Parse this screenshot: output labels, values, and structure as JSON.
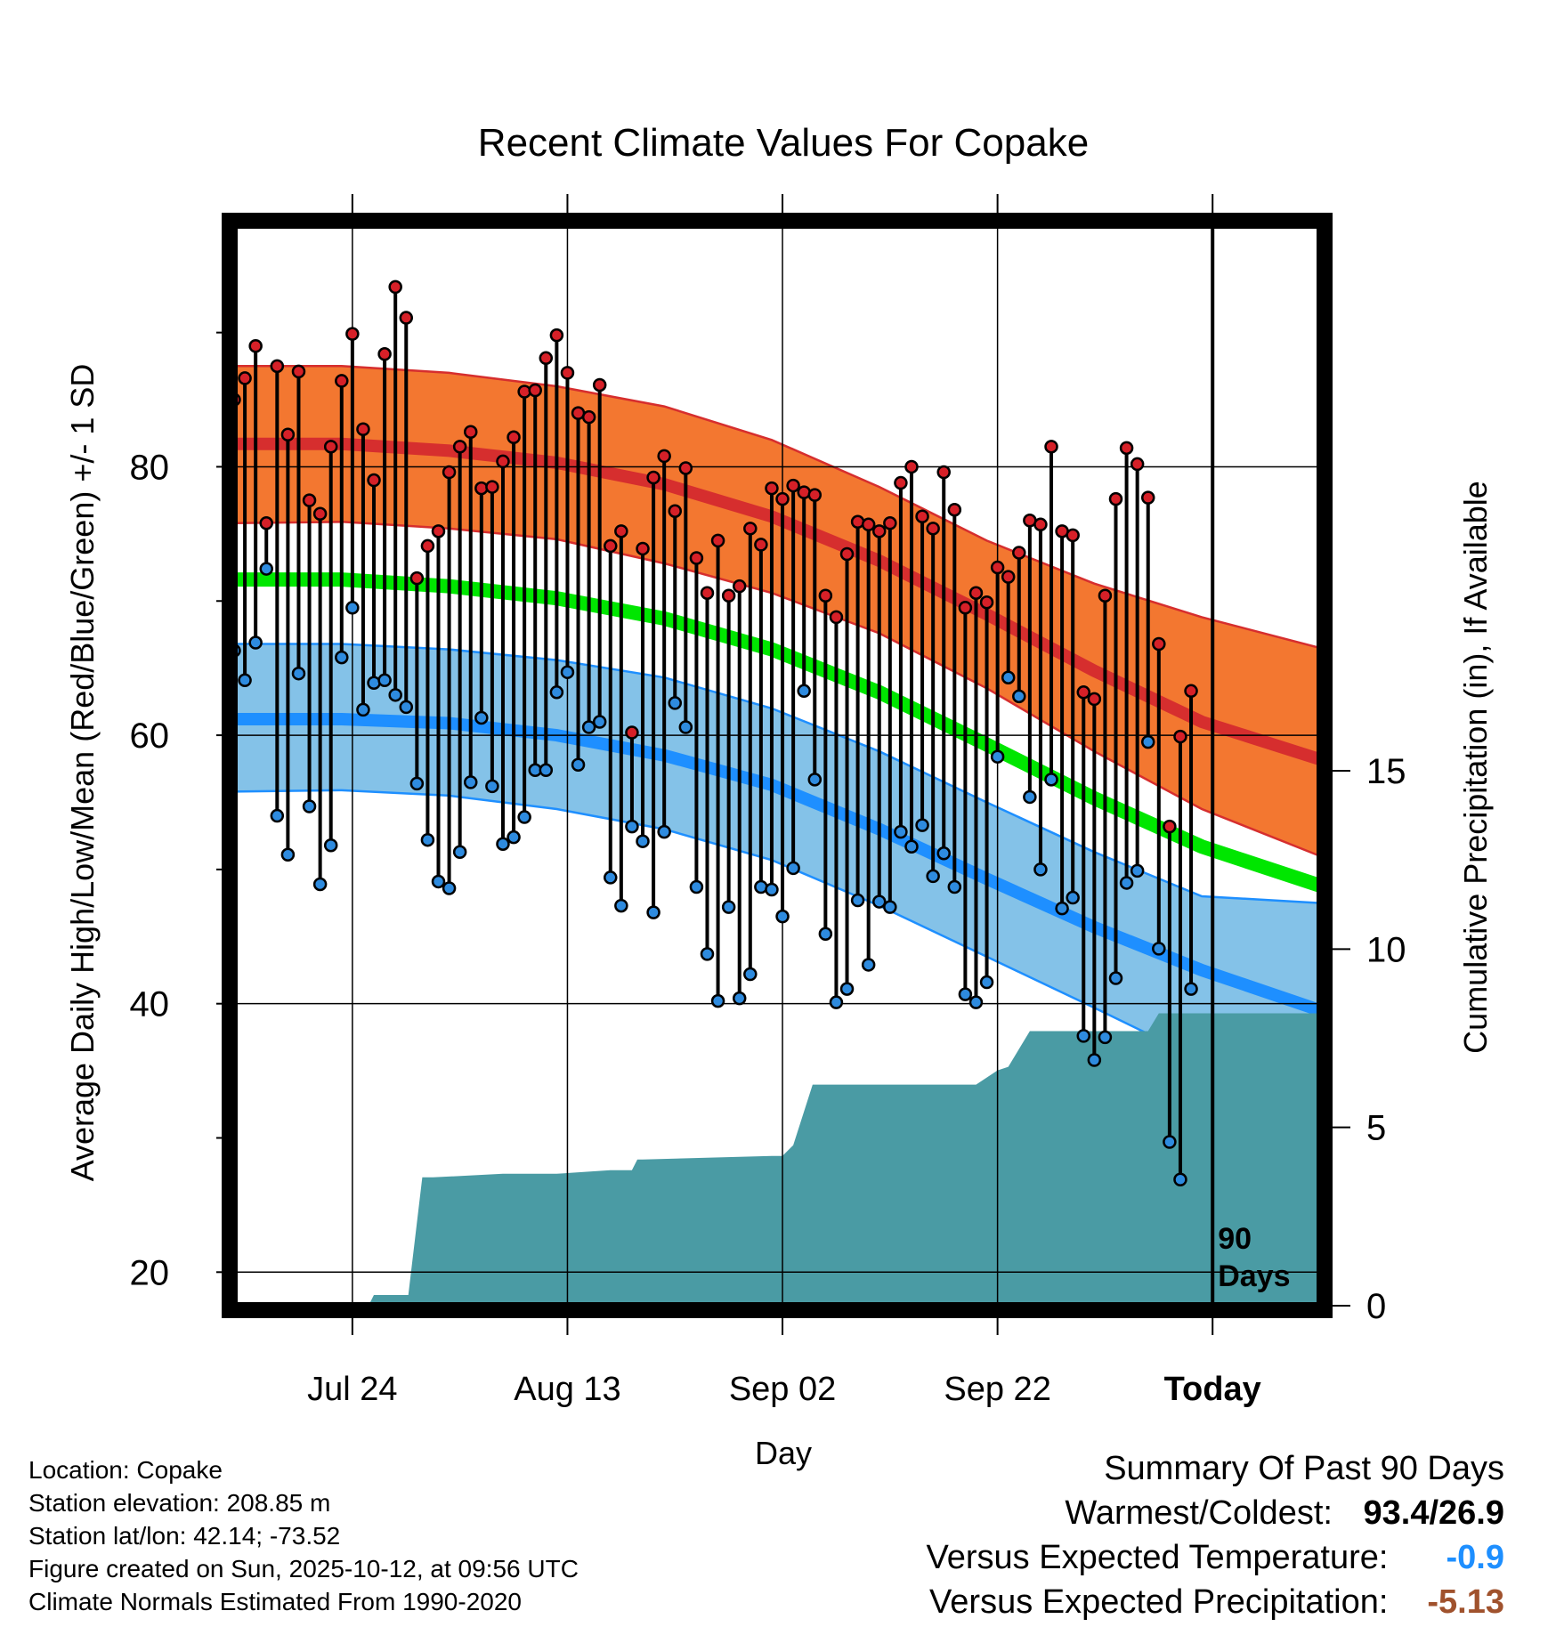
{
  "chart_data": {
    "type": "line",
    "title": "Recent Climate Values For Copake",
    "xlabel": "Day",
    "ylabel": "Average Daily High/Low/Mean (Red/Blue/Green) +/- 1 SD",
    "y2label": "Cumulative Precipitation (in), If Available",
    "x_tick_labels": [
      "Jul 24",
      "Aug 13",
      "Sep 02",
      "Sep 22",
      "Today"
    ],
    "x_tick_days": [
      11,
      31,
      51,
      71,
      91
    ],
    "xlim": [
      0,
      101
    ],
    "ylim": [
      17.5,
      98
    ],
    "y_ticks": [
      20,
      40,
      60,
      80
    ],
    "y2lim": [
      0,
      30.3
    ],
    "y2_ticks": [
      0,
      5,
      10,
      15
    ],
    "today_marker_label": "90 Days",
    "grid": true,
    "normals": {
      "day": [
        0,
        10,
        20,
        30,
        40,
        50,
        60,
        70,
        80,
        90,
        101
      ],
      "high_mean": [
        81.7,
        81.7,
        81.2,
        80.3,
        78.7,
        76.3,
        73.0,
        69.0,
        64.8,
        61.0,
        58.2
      ],
      "high_upper": [
        87.5,
        87.5,
        87.0,
        86.0,
        84.5,
        82.0,
        78.5,
        74.5,
        71.3,
        68.8,
        66.5
      ],
      "high_lower": [
        75.8,
        75.9,
        75.4,
        74.6,
        72.8,
        70.6,
        67.6,
        63.5,
        58.8,
        54.5,
        51.0
      ],
      "mean": [
        71.6,
        71.6,
        71.1,
        70.2,
        68.7,
        66.4,
        63.2,
        59.3,
        55.3,
        51.7,
        48.8
      ],
      "low_mean": [
        61.2,
        61.2,
        60.9,
        60.0,
        58.5,
        56.3,
        53.0,
        49.3,
        45.7,
        42.5,
        39.5
      ],
      "low_upper": [
        66.8,
        66.8,
        66.4,
        65.6,
        64.3,
        62.0,
        58.8,
        55.0,
        51.3,
        48.0,
        47.5
      ],
      "low_lower": [
        55.8,
        55.9,
        55.5,
        54.5,
        53.0,
        50.7,
        47.3,
        43.5,
        39.7,
        35.8,
        31.8
      ]
    },
    "series": [
      {
        "name": "Daily High",
        "start_day": 0,
        "values": [
          85.0,
          86.6,
          89.0,
          75.8,
          87.5,
          82.4,
          87.1,
          77.5,
          76.5,
          81.5,
          86.4,
          89.9,
          82.8,
          79.0,
          88.4,
          93.4,
          91.1,
          71.7,
          74.1,
          75.2,
          79.6,
          81.5,
          82.6,
          78.4,
          78.5,
          80.4,
          82.2,
          85.6,
          85.7,
          88.1,
          89.8,
          87.0,
          84.0,
          83.7,
          86.1,
          74.1,
          75.2,
          60.2,
          73.9,
          79.2,
          80.8,
          76.7,
          79.9,
          73.2,
          70.6,
          74.5,
          70.4,
          71.1,
          75.4,
          74.2,
          78.4,
          77.6,
          78.6,
          78.1,
          77.9,
          70.4,
          68.8,
          73.5,
          75.9,
          75.7,
          75.2,
          75.8,
          78.8,
          80.0,
          76.3,
          75.4,
          79.6,
          76.8,
          69.5,
          70.6,
          69.9,
          72.5,
          71.8,
          73.6,
          76.0,
          75.7,
          81.5,
          75.2,
          74.9,
          63.2,
          62.7,
          70.4,
          77.6,
          81.4,
          80.2,
          77.7,
          66.8,
          53.2,
          59.9,
          63.3
        ]
      },
      {
        "name": "Daily Low",
        "start_day": 0,
        "values": [
          66.3,
          64.1,
          66.9,
          72.4,
          54.0,
          51.1,
          64.6,
          54.7,
          48.9,
          51.8,
          65.8,
          69.5,
          61.9,
          63.9,
          64.1,
          63.0,
          62.1,
          56.4,
          52.2,
          49.1,
          48.6,
          51.3,
          56.5,
          61.3,
          56.2,
          51.9,
          52.4,
          53.9,
          57.4,
          57.4,
          63.2,
          64.7,
          57.8,
          60.6,
          61.0,
          49.4,
          47.3,
          53.2,
          52.1,
          46.8,
          52.8,
          62.4,
          60.6,
          48.7,
          43.7,
          40.2,
          47.2,
          40.4,
          42.2,
          48.7,
          48.5,
          46.5,
          50.1,
          63.3,
          56.7,
          45.2,
          40.1,
          41.1,
          47.7,
          42.9,
          47.6,
          47.2,
          52.8,
          51.7,
          53.3,
          49.5,
          51.2,
          48.7,
          40.7,
          40.1,
          41.6,
          58.4,
          64.3,
          62.9,
          55.4,
          50.0,
          56.7,
          47.1,
          47.9,
          37.6,
          35.8,
          37.5,
          41.9,
          49.0,
          49.9,
          59.5,
          44.1,
          29.7,
          26.9,
          41.1
        ]
      }
    ],
    "precipitation": {
      "day": [
        0,
        12.5,
        13,
        16,
        16.2,
        17.5,
        18.5,
        25,
        30,
        35,
        37,
        37.5,
        38,
        50,
        51,
        52,
        53.8,
        54.3,
        57.5,
        69,
        70.5,
        71,
        72,
        74,
        74.5,
        80,
        85,
        86,
        87,
        101
      ],
      "cumulative": [
        0,
        0,
        0.3,
        0.3,
        0.3,
        3.6,
        3.6,
        3.7,
        3.7,
        3.8,
        3.8,
        4.1,
        4.1,
        4.2,
        4.2,
        4.5,
        6.2,
        6.2,
        6.2,
        6.2,
        6.5,
        6.6,
        6.7,
        7.7,
        7.7,
        7.7,
        7.7,
        8.2,
        8.2,
        8.2
      ]
    }
  },
  "info": {
    "location": "Location: Copake",
    "elevation": "Station elevation: 208.85 m",
    "latlon": "Station lat/lon: 42.14; -73.52",
    "created": "Figure created on Sun, 2025-10-12, at 09:56 UTC",
    "normals": "Climate Normals Estimated From 1990-2020"
  },
  "summary": {
    "heading": "Summary Of Past 90 Days",
    "extremes_label": "Warmest/Coldest:",
    "extremes_value": "93.4/26.9",
    "temp_label": "Versus Expected Temperature:",
    "temp_value": "-0.9",
    "precip_label": "Versus Expected Precipitation:",
    "precip_value": "-5.13"
  },
  "colors": {
    "high_band": "#F37730",
    "high_line": "#D62E2E",
    "mean_line": "#00E600",
    "low_band": "#84C2E8",
    "low_line": "#1E8FFF",
    "precip": "#4A9BA4",
    "high_dot": "#D62028",
    "low_dot": "#2E8BDF",
    "temp_value": "#1E8FFF",
    "precip_value": "#A0522D"
  }
}
